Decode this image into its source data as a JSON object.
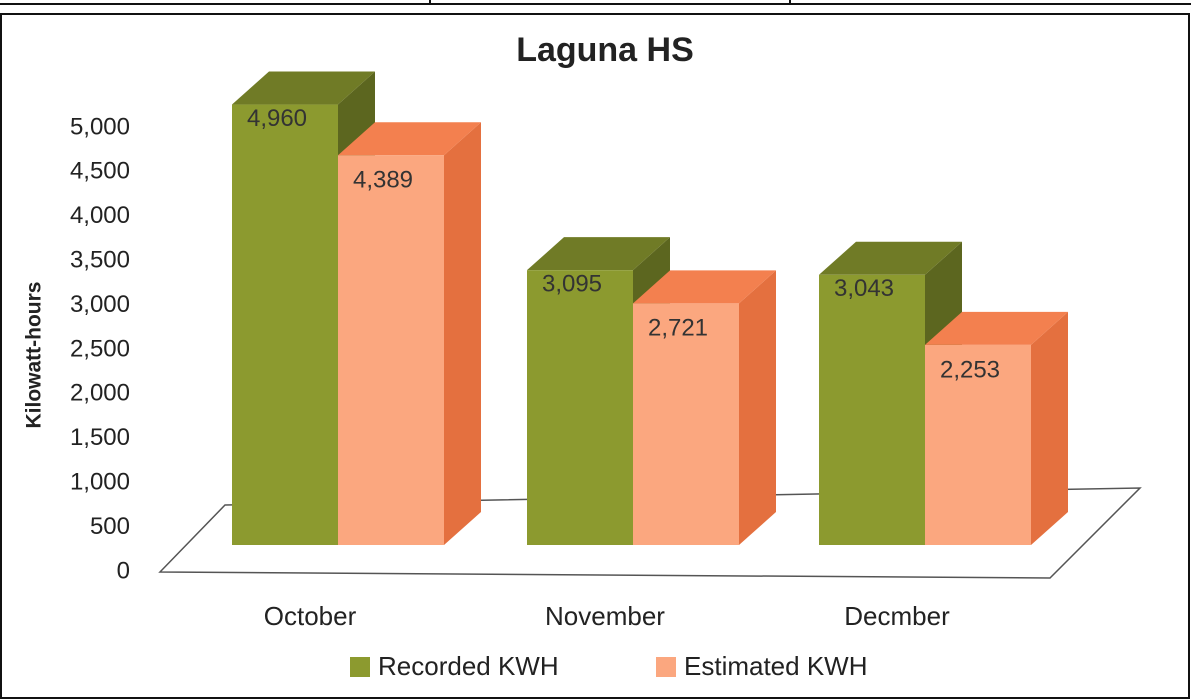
{
  "chart_data": {
    "type": "bar3d",
    "title": "Laguna HS",
    "y_label": "Kilowatt-hours",
    "categories": [
      "October",
      "November",
      "Decmber"
    ],
    "series": [
      {
        "name": "Recorded KWH",
        "color": "#8c9a2f",
        "values": [
          4960,
          3095,
          3043
        ],
        "value_labels": [
          "4,960",
          "3,095",
          "3,043"
        ]
      },
      {
        "name": "Estimated KWH",
        "color": "#fba77f",
        "values": [
          4389,
          2721,
          2253
        ],
        "value_labels": [
          "4,389",
          "2,721",
          "2,253"
        ]
      }
    ],
    "ylim": [
      0,
      5000
    ],
    "yticks": [
      0,
      500,
      {
        "value": 1000,
        "label": "1,000"
      },
      {
        "value": 1500,
        "label": "1,500"
      },
      {
        "value": 2000,
        "label": "2,000"
      },
      {
        "value": 2500,
        "label": "2,500"
      },
      {
        "value": 3000,
        "label": "3,000"
      },
      {
        "value": 3500,
        "label": "3,500"
      },
      {
        "value": 4000,
        "label": "4,000"
      },
      {
        "value": 4500,
        "label": "4,500"
      },
      {
        "value": 5000,
        "label": "5,000"
      }
    ],
    "legend": "bottom"
  }
}
